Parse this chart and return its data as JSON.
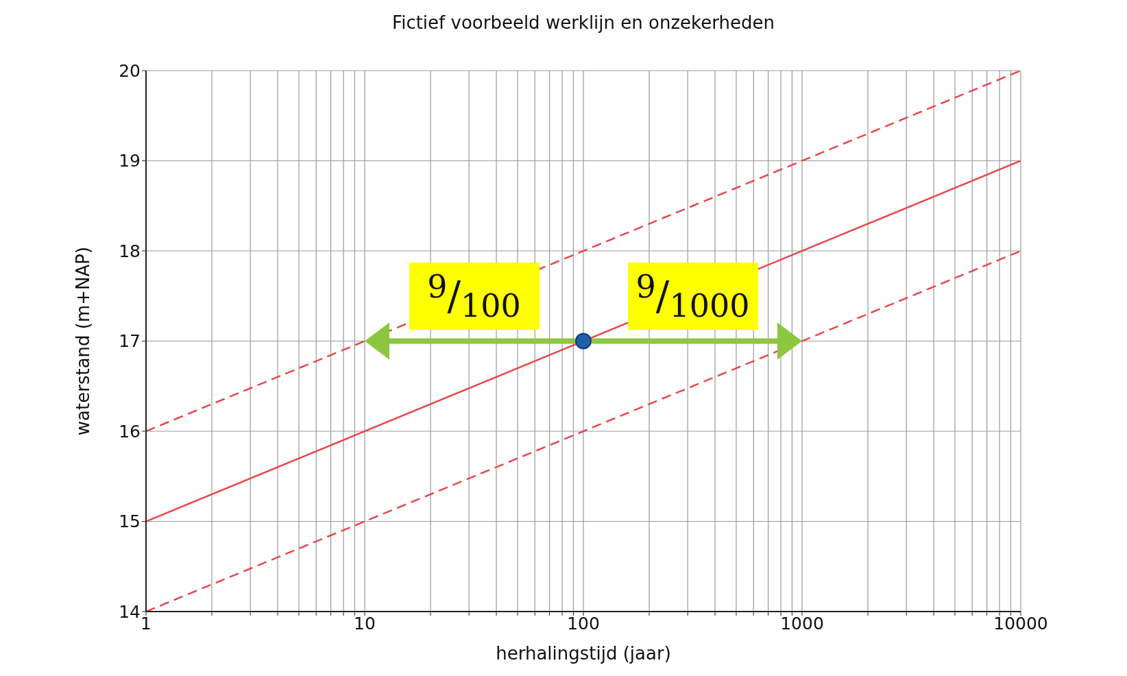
{
  "chart_data": {
    "type": "line",
    "title": "Fictief voorbeeld werklijn en onzekerheden",
    "xlabel": "herhalingstijd (jaar)",
    "ylabel": "waterstand (m+NAP)",
    "log": "x",
    "grid": true,
    "xlim": [
      1,
      10000
    ],
    "xticks": [
      1,
      {
        "value": 2,
        "label": null
      },
      {
        "value": 3,
        "label": null
      },
      {
        "value": 4,
        "label": null
      },
      {
        "value": 5,
        "label": null
      },
      {
        "value": 6,
        "label": null
      },
      {
        "value": 7,
        "label": null
      },
      {
        "value": 8,
        "label": null
      },
      {
        "value": 9,
        "label": null
      },
      10,
      {
        "value": 20,
        "label": null
      },
      {
        "value": 30,
        "label": null
      },
      {
        "value": 40,
        "label": null
      },
      {
        "value": 50,
        "label": null
      },
      {
        "value": 60,
        "label": null
      },
      {
        "value": 70,
        "label": null
      },
      {
        "value": 80,
        "label": null
      },
      {
        "value": 90,
        "label": null
      },
      100,
      {
        "value": 200,
        "label": null
      },
      {
        "value": 300,
        "label": null
      },
      {
        "value": 400,
        "label": null
      },
      {
        "value": 500,
        "label": null
      },
      {
        "value": 600,
        "label": null
      },
      {
        "value": 700,
        "label": null
      },
      {
        "value": 800,
        "label": null
      },
      {
        "value": 900,
        "label": null
      },
      1000,
      {
        "value": 2000,
        "label": null
      },
      {
        "value": 3000,
        "label": null
      },
      {
        "value": 4000,
        "label": null
      },
      {
        "value": 5000,
        "label": null
      },
      {
        "value": 6000,
        "label": null
      },
      {
        "value": 7000,
        "label": null
      },
      {
        "value": 8000,
        "label": null
      },
      {
        "value": 9000,
        "label": null
      },
      10000
    ],
    "ylim": [
      14,
      20
    ],
    "yticks": [
      14,
      15,
      16,
      17,
      18,
      19,
      20
    ],
    "series": [
      {
        "x": [
          1,
          10000
        ],
        "values": [
          16,
          20
        ],
        "color": "#e8474c",
        "line_style": "dashed"
      },
      {
        "x": [
          1,
          10000
        ],
        "values": [
          15,
          19
        ],
        "color": "#e8474c",
        "line_style": "solid"
      },
      {
        "x": [
          1,
          10000
        ],
        "values": [
          14,
          18
        ],
        "color": "#e8474c",
        "line_style": "dashed"
      },
      {
        "type": "scatter",
        "x": [
          100
        ],
        "values": [
          17
        ],
        "color": "#1f5fa8",
        "marker": "circle"
      }
    ],
    "annotations": [
      {
        "text": "$^{9}$/$_{100}$",
        "x": 10,
        "y": 17
      },
      {
        "text": "$^{9}$/$_{1000}$",
        "x": 1000,
        "y": 17
      }
    ]
  }
}
